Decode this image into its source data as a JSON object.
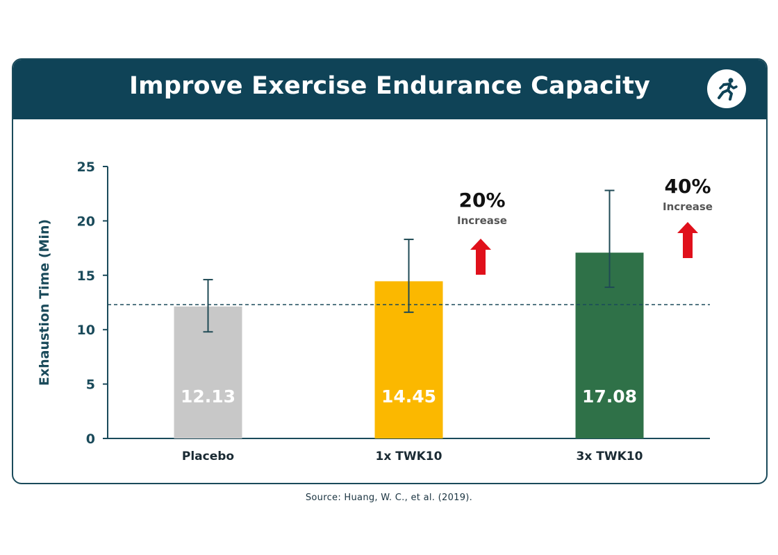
{
  "header": {
    "title": "Improve Exercise Endurance Capacity",
    "icon": "running-person-icon"
  },
  "source": "Source: Huang, W. C., et al. (2019).",
  "colors": {
    "header_bg": "#0f4357",
    "axis": "#1a4a5a",
    "placebo": "#c8c8c8",
    "twk10_1x": "#fbb800",
    "twk10_3x": "#2f7148",
    "arrow": "#e0101b"
  },
  "chart_data": {
    "type": "bar",
    "ylabel": "Exhaustion Time (Min)",
    "ylim": [
      0,
      25
    ],
    "yticks": [
      0,
      5,
      10,
      15,
      20,
      25
    ],
    "categories": [
      "Placebo",
      "1x TWK10",
      "3x TWK10"
    ],
    "values": [
      12.13,
      14.45,
      17.08
    ],
    "value_labels": [
      "12.13",
      "14.45",
      "17.08"
    ],
    "error_high": [
      14.6,
      18.3,
      22.8
    ],
    "error_low": [
      9.8,
      11.6,
      13.9
    ],
    "reference_line": 12.3,
    "annotations": [
      {
        "category": "1x TWK10",
        "percent": "20%",
        "label": "Increase"
      },
      {
        "category": "3x TWK10",
        "percent": "40%",
        "label": "Increase"
      }
    ]
  }
}
